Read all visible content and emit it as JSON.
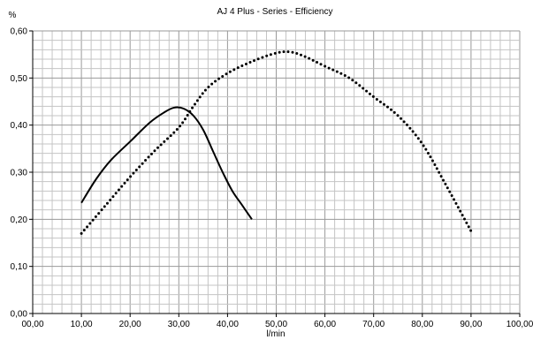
{
  "chart_data": {
    "type": "line",
    "title": "AJ 4 Plus - Series - Efficiency",
    "ylabel": "%",
    "xlabel": "l/min",
    "xlim": [
      0,
      100
    ],
    "ylim": [
      0,
      0.6
    ],
    "xticks": [
      "00,00",
      "10,00",
      "20,00",
      "30,00",
      "40,00",
      "50,00",
      "60,00",
      "70,00",
      "80,00",
      "90,00",
      "100,00"
    ],
    "yticks": [
      "0,00",
      "0,10",
      "0,20",
      "0,30",
      "0,40",
      "0,50",
      "0,60"
    ],
    "grid": true,
    "series": [
      {
        "style": "solid",
        "color": "#000000",
        "x": [
          10,
          13,
          16,
          20,
          24,
          27,
          29,
          31,
          33,
          35,
          37,
          39,
          41,
          43,
          45
        ],
        "y": [
          0.235,
          0.285,
          0.325,
          0.365,
          0.405,
          0.427,
          0.437,
          0.435,
          0.42,
          0.39,
          0.345,
          0.3,
          0.26,
          0.23,
          0.2
        ]
      },
      {
        "style": "dotted",
        "color": "#000000",
        "x": [
          10,
          15,
          20,
          25,
          30,
          33,
          36,
          40,
          45,
          50,
          53,
          56,
          60,
          65,
          70,
          75,
          80,
          85,
          90
        ],
        "y": [
          0.17,
          0.23,
          0.29,
          0.345,
          0.395,
          0.44,
          0.48,
          0.51,
          0.535,
          0.553,
          0.555,
          0.545,
          0.525,
          0.5,
          0.46,
          0.42,
          0.36,
          0.27,
          0.175
        ]
      }
    ]
  }
}
